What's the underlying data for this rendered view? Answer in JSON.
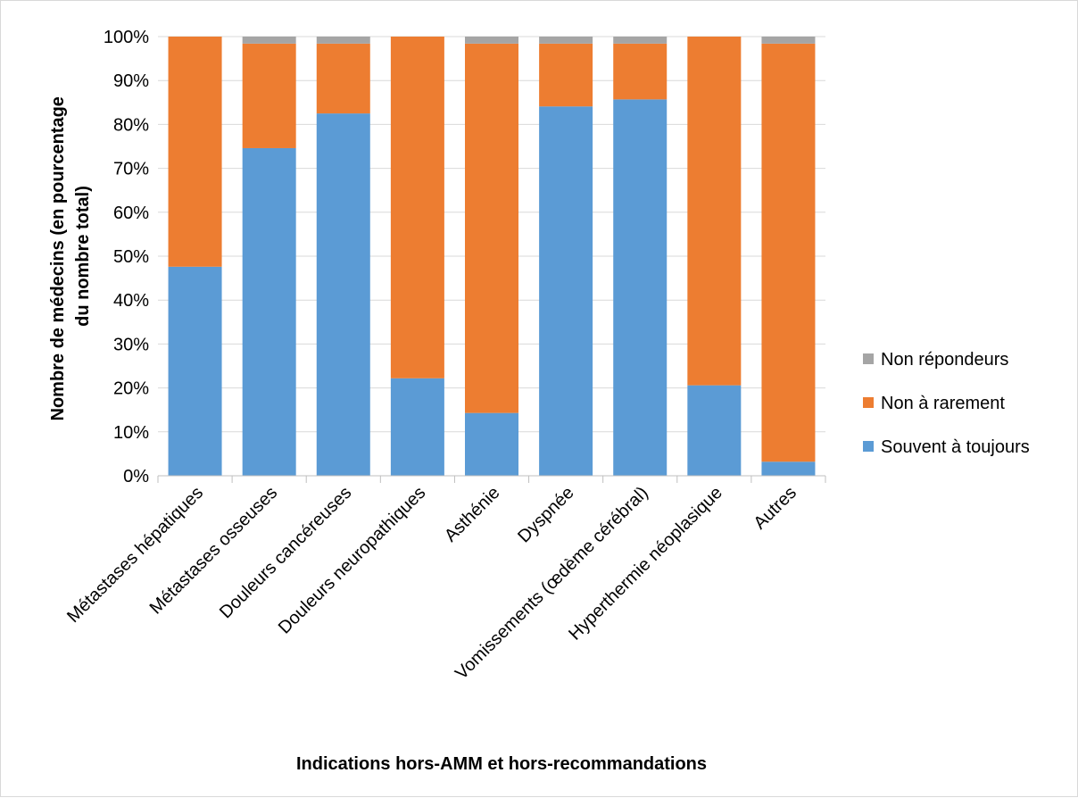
{
  "chart_data": {
    "type": "bar",
    "stacked": true,
    "percent": true,
    "categories": [
      "Métastases hépatiques",
      "Métastases osseuses",
      "Douleurs cancéreuses",
      "Douleurs neuropathiques",
      "Asthénie",
      "Dyspnée",
      "Vomissements (œdème cérébral)",
      "Hyperthermie néoplasique",
      "Autres"
    ],
    "series": [
      {
        "name": "Souvent à toujours",
        "color": "#5b9bd5",
        "values": [
          47.6,
          74.6,
          82.5,
          22.2,
          14.3,
          84.1,
          85.7,
          20.6,
          3.2
        ]
      },
      {
        "name": "Non à rarement",
        "color": "#ed7d31",
        "values": [
          52.4,
          23.8,
          15.9,
          77.8,
          84.1,
          14.3,
          12.7,
          79.4,
          95.2
        ]
      },
      {
        "name": "Non répondeurs",
        "color": "#a5a5a5",
        "values": [
          0,
          1.6,
          1.6,
          0,
          1.6,
          1.6,
          1.6,
          0,
          1.6
        ]
      }
    ],
    "ylim": [
      0,
      100
    ],
    "yticks": [
      "0%",
      "10%",
      "20%",
      "30%",
      "40%",
      "50%",
      "60%",
      "70%",
      "80%",
      "90%",
      "100%"
    ],
    "ytick_values": [
      0,
      10,
      20,
      30,
      40,
      50,
      60,
      70,
      80,
      90,
      100
    ],
    "xlabel": "Indications hors-AMM et hors-recommandations",
    "ylabel_lines": [
      "Nombre de médecins (en pourcentage",
      "du nombre total)"
    ],
    "grid": true,
    "legend": "right",
    "legend_order": [
      "Non répondeurs",
      "Non à rarement",
      "Souvent à toujours"
    ]
  }
}
